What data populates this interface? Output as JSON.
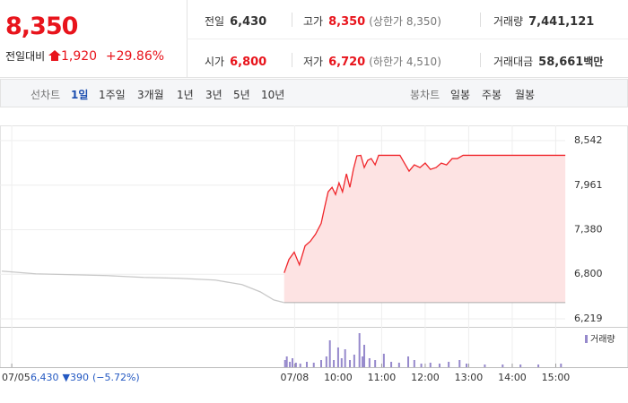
{
  "header": {
    "price": "8,350",
    "change_label": "전일대비",
    "change": "1,920",
    "change_pct": "+29.86%",
    "stats": [
      {
        "label": "전일",
        "value": "6,430"
      },
      {
        "label": "고가",
        "value": "8,350",
        "note": "(상한가 8,350)"
      },
      {
        "label": "거래량",
        "value": "7,441,121"
      },
      {
        "label": "시가",
        "value": "6,800"
      },
      {
        "label": "저가",
        "value": "6,720",
        "note": "(하한가 4,510)"
      },
      {
        "label": "거래대금",
        "value": "58,661",
        "unit": "백만"
      }
    ]
  },
  "tabs": {
    "line_label": "선차트",
    "line": [
      "1일",
      "1주일",
      "3개월",
      "1년",
      "3년",
      "5년",
      "10년"
    ],
    "candle_label": "봉차트",
    "candle": [
      "일봉",
      "주봉",
      "월봉"
    ]
  },
  "chart_data": [
    {
      "type": "line",
      "xlim": [
        2.23,
        16.66
      ],
      "xticks": [
        {
          "value": 2.5,
          "label": "07/05"
        },
        {
          "value": 9,
          "label": "07/08"
        },
        {
          "value": 10,
          "label": "10:00"
        },
        {
          "value": 11,
          "label": "11:00"
        },
        {
          "value": 12,
          "label": "12:00"
        },
        {
          "value": 13,
          "label": "13:00"
        },
        {
          "value": 14,
          "label": "14:00"
        },
        {
          "value": 15,
          "label": "15:00"
        }
      ],
      "ylim": [
        6114,
        8682
      ],
      "yticks": [
        {
          "value": 6219,
          "label": "6,219"
        },
        {
          "value": 6800,
          "label": "6,800"
        },
        {
          "value": 7380,
          "label": "7,380"
        },
        {
          "value": 7961,
          "label": "7,961"
        },
        {
          "value": 8542,
          "label": "8,542"
        }
      ],
      "grid": true,
      "baseline": 6430,
      "prev_day": {
        "date": "07/05",
        "close": "6,430",
        "change": "▼390",
        "change_pct": "(−5.72%)"
      },
      "series": [
        {
          "color": "#c8c8c8",
          "x": [
            2.27,
            3.05,
            3.88,
            4.7,
            5.53,
            6.35,
            7.18,
            7.79,
            8.21,
            8.52,
            8.76
          ],
          "values": [
            6841,
            6806,
            6794,
            6782,
            6759,
            6747,
            6724,
            6665,
            6571,
            6465,
            6430
          ]
        },
        {
          "color": "#f0262b",
          "fill": "#fde3e3",
          "x": [
            8.76,
            8.87,
            8.99,
            9.11,
            9.24,
            9.36,
            9.48,
            9.61,
            9.69,
            9.77,
            9.86,
            9.94,
            10.02,
            10.1,
            10.19,
            10.27,
            10.35,
            10.43,
            10.52,
            10.6,
            10.68,
            10.76,
            10.85,
            10.93,
            11.01,
            11.18,
            11.42,
            11.51,
            11.63,
            11.75,
            11.88,
            12.0,
            12.12,
            12.25,
            12.37,
            12.49,
            12.62,
            12.74,
            12.87,
            12.99,
            15.22
          ],
          "values": [
            6818,
            6994,
            7088,
            6923,
            7170,
            7229,
            7322,
            7463,
            7674,
            7874,
            7933,
            7839,
            7991,
            7874,
            8109,
            7933,
            8167,
            8343,
            8350,
            8191,
            8285,
            8308,
            8226,
            8350,
            8350,
            8350,
            8350,
            8261,
            8144,
            8226,
            8191,
            8249,
            8167,
            8191,
            8249,
            8226,
            8308,
            8308,
            8350,
            8350,
            8350
          ]
        }
      ]
    },
    {
      "type": "bar",
      "title": "거래량",
      "color": "#9689cc",
      "xlim": [
        2.23,
        16.66
      ],
      "ylim": [
        0,
        400000
      ],
      "x": [
        8.78,
        8.82,
        8.89,
        8.95,
        9.03,
        9.13,
        9.28,
        9.44,
        9.61,
        9.73,
        9.81,
        9.9,
        10.0,
        10.08,
        10.16,
        10.27,
        10.37,
        10.49,
        10.56,
        10.6,
        10.72,
        10.85,
        11.05,
        11.22,
        11.4,
        11.61,
        11.75,
        11.91,
        12.12,
        12.33,
        12.54,
        12.79,
        12.95,
        13.37,
        13.78,
        14.19,
        14.6,
        15.12
      ],
      "values": [
        80000,
        120000,
        60000,
        100000,
        50000,
        40000,
        60000,
        50000,
        80000,
        120000,
        300000,
        80000,
        220000,
        100000,
        200000,
        80000,
        140000,
        380000,
        120000,
        250000,
        100000,
        80000,
        150000,
        60000,
        50000,
        120000,
        80000,
        40000,
        50000,
        40000,
        60000,
        80000,
        40000,
        30000,
        30000,
        30000,
        30000,
        40000
      ]
    }
  ]
}
